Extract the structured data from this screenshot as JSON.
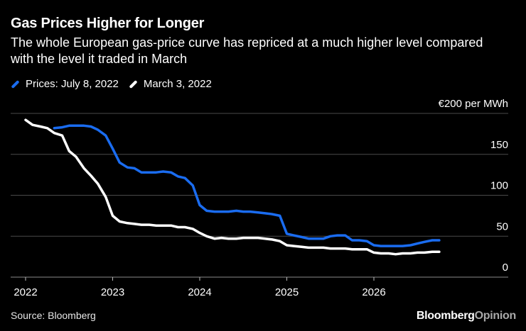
{
  "header": {
    "title": "Gas Prices Higher for Longer",
    "subtitle": "The whole European gas-price curve has repriced at a much higher level compared with the level it traded in March"
  },
  "legend": [
    {
      "label": "Prices: July 8, 2022",
      "color": "#1a6cf0"
    },
    {
      "label": "March 3, 2022",
      "color": "#ffffff"
    }
  ],
  "footer": {
    "source": "Source: Bloomberg",
    "brand_main": "Bloomberg",
    "brand_opinion": "Opinion"
  },
  "chart_data": {
    "type": "line",
    "y_unit_label": "€200 per MWh",
    "ylim": [
      0,
      200
    ],
    "yticks": [
      0,
      50,
      100,
      150
    ],
    "xlim": [
      2022.0,
      2027.2
    ],
    "xticks": [
      2022,
      2023,
      2024,
      2025,
      2026
    ],
    "grid": true,
    "legend_position": "top-left",
    "series": [
      {
        "name": "Prices: July 8, 2022",
        "color": "#1a6cf0",
        "points": [
          [
            2022.33,
            182
          ],
          [
            2022.42,
            183
          ],
          [
            2022.5,
            185
          ],
          [
            2022.58,
            185
          ],
          [
            2022.67,
            185
          ],
          [
            2022.75,
            184
          ],
          [
            2022.83,
            180
          ],
          [
            2022.92,
            173
          ],
          [
            2023.0,
            157
          ],
          [
            2023.08,
            140
          ],
          [
            2023.17,
            134
          ],
          [
            2023.25,
            133
          ],
          [
            2023.33,
            128
          ],
          [
            2023.42,
            128
          ],
          [
            2023.5,
            128
          ],
          [
            2023.58,
            129
          ],
          [
            2023.67,
            128
          ],
          [
            2023.75,
            123
          ],
          [
            2023.83,
            121
          ],
          [
            2023.92,
            112
          ],
          [
            2024.0,
            88
          ],
          [
            2024.08,
            81
          ],
          [
            2024.17,
            80
          ],
          [
            2024.25,
            80
          ],
          [
            2024.33,
            80
          ],
          [
            2024.42,
            81
          ],
          [
            2024.5,
            80
          ],
          [
            2024.58,
            80
          ],
          [
            2024.67,
            79
          ],
          [
            2024.75,
            78
          ],
          [
            2024.83,
            77
          ],
          [
            2024.92,
            75
          ],
          [
            2025.0,
            53
          ],
          [
            2025.08,
            51
          ],
          [
            2025.17,
            49
          ],
          [
            2025.25,
            47
          ],
          [
            2025.33,
            47
          ],
          [
            2025.42,
            47
          ],
          [
            2025.5,
            50
          ],
          [
            2025.58,
            51
          ],
          [
            2025.67,
            51
          ],
          [
            2025.75,
            45
          ],
          [
            2025.83,
            45
          ],
          [
            2025.92,
            44
          ],
          [
            2026.0,
            39
          ],
          [
            2026.08,
            38
          ],
          [
            2026.17,
            38
          ],
          [
            2026.25,
            38
          ],
          [
            2026.33,
            38
          ],
          [
            2026.42,
            39
          ],
          [
            2026.5,
            41
          ],
          [
            2026.58,
            43
          ],
          [
            2026.67,
            45
          ],
          [
            2026.75,
            45
          ]
        ]
      },
      {
        "name": "March 3, 2022",
        "color": "#ffffff",
        "points": [
          [
            2022.0,
            192
          ],
          [
            2022.08,
            186
          ],
          [
            2022.17,
            184
          ],
          [
            2022.25,
            182
          ],
          [
            2022.33,
            176
          ],
          [
            2022.42,
            173
          ],
          [
            2022.5,
            154
          ],
          [
            2022.58,
            147
          ],
          [
            2022.67,
            133
          ],
          [
            2022.75,
            124
          ],
          [
            2022.83,
            114
          ],
          [
            2022.92,
            98
          ],
          [
            2023.0,
            75
          ],
          [
            2023.08,
            68
          ],
          [
            2023.17,
            66
          ],
          [
            2023.25,
            65
          ],
          [
            2023.33,
            64
          ],
          [
            2023.42,
            64
          ],
          [
            2023.5,
            63
          ],
          [
            2023.58,
            63
          ],
          [
            2023.67,
            63
          ],
          [
            2023.75,
            61
          ],
          [
            2023.83,
            61
          ],
          [
            2023.92,
            59
          ],
          [
            2024.0,
            54
          ],
          [
            2024.08,
            50
          ],
          [
            2024.17,
            47
          ],
          [
            2024.25,
            48
          ],
          [
            2024.33,
            47
          ],
          [
            2024.42,
            47
          ],
          [
            2024.5,
            48
          ],
          [
            2024.58,
            48
          ],
          [
            2024.67,
            48
          ],
          [
            2024.75,
            47
          ],
          [
            2024.83,
            46
          ],
          [
            2024.92,
            44
          ],
          [
            2025.0,
            39
          ],
          [
            2025.08,
            38
          ],
          [
            2025.17,
            37
          ],
          [
            2025.25,
            36
          ],
          [
            2025.33,
            36
          ],
          [
            2025.42,
            36
          ],
          [
            2025.5,
            35
          ],
          [
            2025.58,
            35
          ],
          [
            2025.67,
            35
          ],
          [
            2025.75,
            34
          ],
          [
            2025.83,
            34
          ],
          [
            2025.92,
            34
          ],
          [
            2026.0,
            30
          ],
          [
            2026.08,
            29
          ],
          [
            2026.17,
            29
          ],
          [
            2026.25,
            28
          ],
          [
            2026.33,
            29
          ],
          [
            2026.42,
            29
          ],
          [
            2026.5,
            30
          ],
          [
            2026.58,
            30
          ],
          [
            2026.67,
            31
          ],
          [
            2026.75,
            31
          ]
        ]
      }
    ]
  }
}
